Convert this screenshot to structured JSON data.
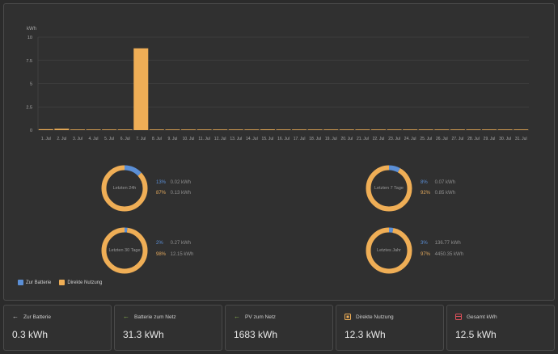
{
  "colors": {
    "bar": "#efae56",
    "battery": "#5b8fd6",
    "direct": "#efae56",
    "grid": "#4a4a4a",
    "axis_text": "#a8a8a8",
    "green": "#8fbf4f",
    "red": "#e0505a"
  },
  "chart_data": {
    "type": "bar",
    "ylabel": "kWh",
    "ylim": [
      0,
      10
    ],
    "yticks": [
      "0",
      "2.5",
      "5",
      "7.5",
      "10"
    ],
    "categories": [
      "1. Jul",
      "2. Jul",
      "3. Jul",
      "4. Jul",
      "5. Jul",
      "6. Jul",
      "7. Jul",
      "8. Jul",
      "9. Jul",
      "10. Jul",
      "11. Jul",
      "12. Jul",
      "13. Jul",
      "14. Jul",
      "15. Jul",
      "16. Jul",
      "17. Jul",
      "18. Jul",
      "19. Jul",
      "20. Jul",
      "21. Jul",
      "22. Jul",
      "23. Jul",
      "24. Jul",
      "25. Jul",
      "26. Jul",
      "27. Jul",
      "28. Jul",
      "29. Jul",
      "30. Jul",
      "31. Jul"
    ],
    "values": [
      0.1,
      0.15,
      0.05,
      0.05,
      0.05,
      0.05,
      8.8,
      0.05,
      0.05,
      0.05,
      0.02,
      0.05,
      0.05,
      0.05,
      0.08,
      0.05,
      0.06,
      0.05,
      0.05,
      0.05,
      0.04,
      0.06,
      0.06,
      0.05,
      0.05,
      0.04,
      0.05,
      0.05,
      0.05,
      0.05,
      0.06
    ]
  },
  "donuts": [
    {
      "label": "Letzten 24h",
      "blue_pct": 13,
      "blue_label": "13%",
      "blue_value": "0.02 kWh",
      "orange_label": "87%",
      "orange_value": "0.13 kWh"
    },
    {
      "label": "Letzten 7 Tage",
      "blue_pct": 8,
      "blue_label": "8%",
      "blue_value": "0.07 kWh",
      "orange_label": "92%",
      "orange_value": "0.85 kWh"
    },
    {
      "label": "Letzten 30 Tage",
      "blue_pct": 2,
      "blue_label": "2%",
      "blue_value": "0.27 kWh",
      "orange_label": "98%",
      "orange_value": "12.15 kWh"
    },
    {
      "label": "Letztes Jahr",
      "blue_pct": 3,
      "blue_label": "3%",
      "blue_value": "136.77 kWh",
      "orange_label": "97%",
      "orange_value": "4450.35 kWh"
    }
  ],
  "legend": {
    "battery": "Zur Batterie",
    "direct": "Direkte Nutzung"
  },
  "cards": [
    {
      "title": "Zur Batterie",
      "value": "0.3 kWh",
      "icon": "arrow-left-icon"
    },
    {
      "title": "Batterie zum Netz",
      "value": "31.3 kWh",
      "icon": "arrow-left-icon"
    },
    {
      "title": "PV zum Netz",
      "value": "1683 kWh",
      "icon": "arrow-left-icon"
    },
    {
      "title": "Direkte Nutzung",
      "value": "12.3 kWh",
      "icon": "direct-usage-icon"
    },
    {
      "title": "Gesamt kWh",
      "value": "12.5 kWh",
      "icon": "total-icon"
    }
  ]
}
